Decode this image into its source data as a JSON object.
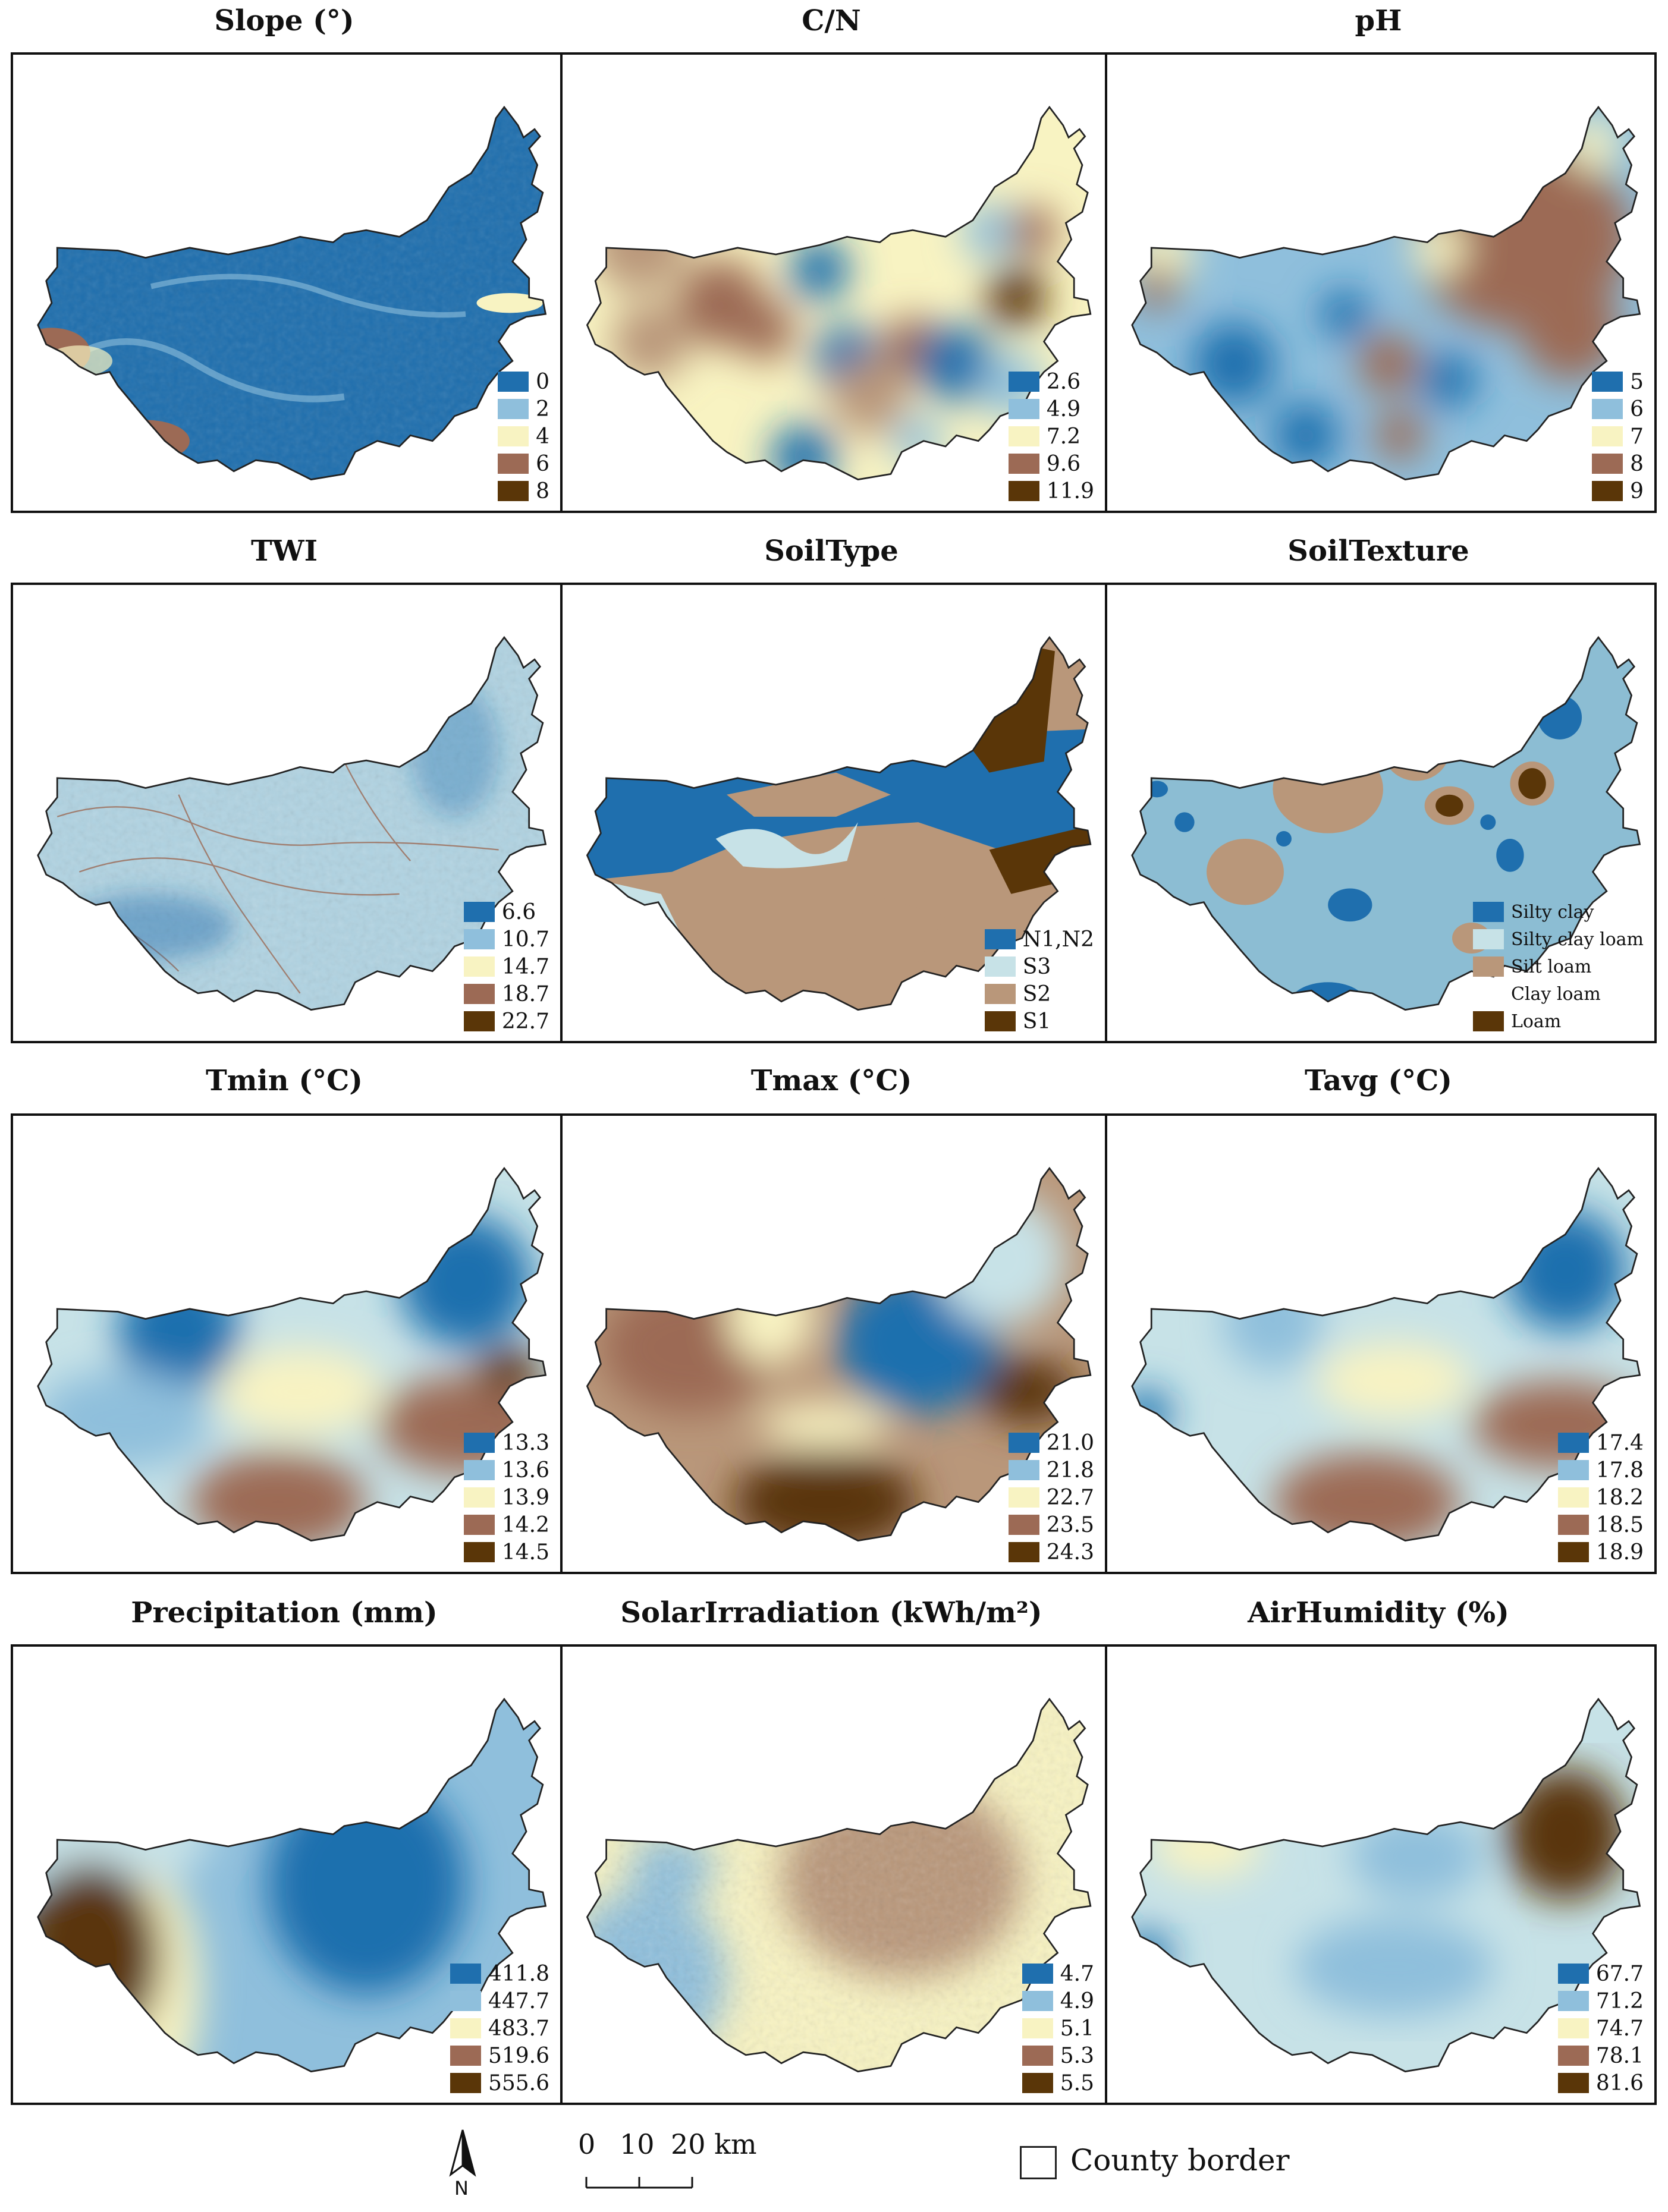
{
  "colors": {
    "c1": "#1f6fae",
    "c2": "#8fbfdc",
    "c3": "#f8f3c2",
    "c4": "#9c6a55",
    "c5": "#5a3608",
    "c_light": "#c7e2e7",
    "c_tan": "#b9977a",
    "c_mid": "#8cbdd3"
  },
  "panels": [
    {
      "id": "slope",
      "title": "Slope (°)",
      "legend": [
        "0",
        "2",
        "4",
        "6",
        "8"
      ]
    },
    {
      "id": "cn",
      "title": "C/N",
      "legend": [
        "2.6",
        "4.9",
        "7.2",
        "9.6",
        "11.9"
      ]
    },
    {
      "id": "ph",
      "title": "pH",
      "legend": [
        "5",
        "6",
        "7",
        "8",
        "9"
      ]
    },
    {
      "id": "twi",
      "title": "TWI",
      "legend": [
        "6.6",
        "10.7",
        "14.7",
        "18.7",
        "22.7"
      ]
    },
    {
      "id": "soiltype",
      "title": "SoilType",
      "legend": [
        "N1,N2",
        "S3",
        "S2",
        "S1"
      ]
    },
    {
      "id": "soiltexture",
      "title": "SoilTexture",
      "legend": [
        "Silty clay",
        "Silty clay loam",
        "Silt loam",
        "Clay loam",
        "Loam"
      ]
    },
    {
      "id": "tmin",
      "title": "Tmin (°C)",
      "legend": [
        "13.3",
        "13.6",
        "13.9",
        "14.2",
        "14.5"
      ]
    },
    {
      "id": "tmax",
      "title": "Tmax (°C)",
      "legend": [
        "21.0",
        "21.8",
        "22.7",
        "23.5",
        "24.3"
      ]
    },
    {
      "id": "tavg",
      "title": "Tavg (°C)",
      "legend": [
        "17.4",
        "17.8",
        "18.2",
        "18.5",
        "18.9"
      ]
    },
    {
      "id": "precip",
      "title": "Precipitation (mm)",
      "legend": [
        "411.8",
        "447.7",
        "483.7",
        "519.6",
        "555.6"
      ]
    },
    {
      "id": "solar",
      "title": "SolarIrradiation (kWh/m²)",
      "legend": [
        "4.7",
        "4.9",
        "5.1",
        "5.3",
        "5.5"
      ]
    },
    {
      "id": "humidity",
      "title": "AirHumidity (%)",
      "legend": [
        "67.7",
        "71.2",
        "74.7",
        "78.1",
        "81.6"
      ]
    }
  ],
  "footer": {
    "north_label": "N",
    "scale_ticks": [
      "0",
      "10",
      "20 km"
    ],
    "county_border_label": "County border"
  }
}
